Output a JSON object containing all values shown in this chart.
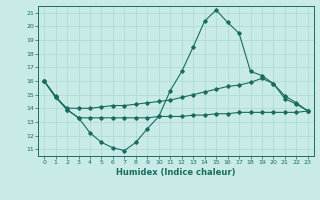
{
  "xlabel": "Humidex (Indice chaleur)",
  "bg_color": "#c8ebe8",
  "line_color": "#1a6b5e",
  "grid_color": "#aad8d3",
  "xlim": [
    -0.5,
    23.5
  ],
  "ylim": [
    10.5,
    21.5
  ],
  "yticks": [
    11,
    12,
    13,
    14,
    15,
    16,
    17,
    18,
    19,
    20,
    21
  ],
  "xticks": [
    0,
    1,
    2,
    3,
    4,
    5,
    6,
    7,
    8,
    9,
    10,
    11,
    12,
    13,
    14,
    15,
    16,
    17,
    18,
    19,
    20,
    21,
    22,
    23
  ],
  "line1_x": [
    0,
    1,
    2,
    3,
    4,
    5,
    6,
    7,
    8,
    9,
    10,
    11,
    12,
    13,
    14,
    15,
    16,
    17,
    18,
    19,
    20,
    21,
    22,
    23
  ],
  "line1_y": [
    16.0,
    14.9,
    13.9,
    13.3,
    12.2,
    11.5,
    11.1,
    10.9,
    11.5,
    12.5,
    13.4,
    15.3,
    16.7,
    18.5,
    20.4,
    21.2,
    20.3,
    19.5,
    16.7,
    16.4,
    15.8,
    14.7,
    14.3,
    13.8
  ],
  "line2_x": [
    0,
    1,
    2,
    3,
    4,
    5,
    6,
    7,
    8,
    9,
    10,
    11,
    12,
    13,
    14,
    15,
    16,
    17,
    18,
    19,
    20,
    21,
    22,
    23
  ],
  "line2_y": [
    16.0,
    14.8,
    14.0,
    14.0,
    14.0,
    14.1,
    14.2,
    14.2,
    14.3,
    14.4,
    14.5,
    14.6,
    14.8,
    15.0,
    15.2,
    15.4,
    15.6,
    15.7,
    15.9,
    16.2,
    15.8,
    14.9,
    14.4,
    13.8
  ],
  "line3_x": [
    0,
    1,
    2,
    3,
    4,
    5,
    6,
    7,
    8,
    9,
    10,
    11,
    12,
    13,
    14,
    15,
    16,
    17,
    18,
    19,
    20,
    21,
    22,
    23
  ],
  "line3_y": [
    16.0,
    14.8,
    13.9,
    13.3,
    13.3,
    13.3,
    13.3,
    13.3,
    13.3,
    13.3,
    13.4,
    13.4,
    13.4,
    13.5,
    13.5,
    13.6,
    13.6,
    13.7,
    13.7,
    13.7,
    13.7,
    13.7,
    13.7,
    13.8
  ]
}
